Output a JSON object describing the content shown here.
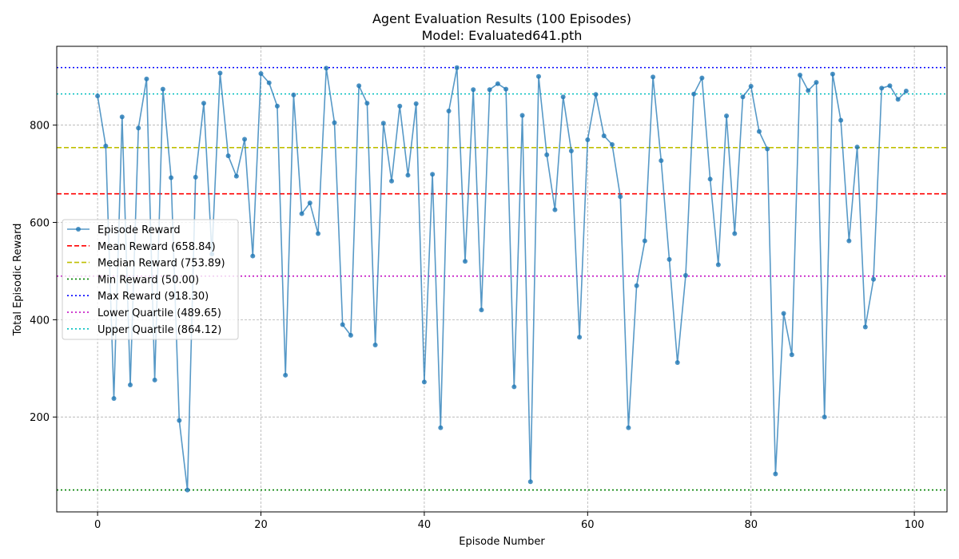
{
  "chart_data": {
    "type": "line",
    "title": "Agent Evaluation Results (100 Episodes)",
    "subtitle": "Model: Evaluated641.pth",
    "xlabel": "Episode Number",
    "ylabel": "Total Episodic Reward",
    "xlim": [
      -5,
      104
    ],
    "ylim": [
      5,
      962
    ],
    "x_ticks": [
      0,
      20,
      40,
      60,
      80,
      100
    ],
    "y_ticks": [
      200,
      400,
      600,
      800
    ],
    "grid": true,
    "legend_position": "center-left",
    "series": [
      {
        "name": "Episode Reward",
        "color": "#1f77b4",
        "x": [
          0,
          1,
          2,
          3,
          4,
          5,
          6,
          7,
          8,
          9,
          10,
          11,
          12,
          13,
          14,
          15,
          16,
          17,
          18,
          19,
          20,
          21,
          22,
          23,
          24,
          25,
          26,
          27,
          28,
          29,
          30,
          31,
          32,
          33,
          34,
          35,
          36,
          37,
          38,
          39,
          40,
          41,
          42,
          43,
          44,
          45,
          46,
          47,
          48,
          49,
          50,
          51,
          52,
          53,
          54,
          55,
          56,
          57,
          58,
          59,
          60,
          61,
          62,
          63,
          64,
          65,
          66,
          67,
          68,
          69,
          70,
          71,
          72,
          73,
          74,
          75,
          76,
          77,
          78,
          79,
          80,
          81,
          82,
          83,
          84,
          85,
          86,
          87,
          88,
          89,
          90,
          91,
          92,
          93,
          94,
          95,
          96,
          97,
          98,
          99
        ],
        "values": [
          860,
          757,
          238,
          817,
          266,
          794,
          895,
          276,
          874,
          692,
          193,
          50,
          693,
          845,
          535,
          907,
          737,
          695,
          771,
          531,
          906,
          887,
          839,
          286,
          862,
          618,
          640,
          577,
          917,
          805,
          390,
          368,
          881,
          845,
          348,
          804,
          685,
          839,
          697,
          844,
          272,
          699,
          178,
          829,
          918,
          520,
          873,
          420,
          873,
          885,
          874,
          262,
          820,
          67,
          900,
          739,
          626,
          858,
          747,
          364,
          770,
          863,
          778,
          760,
          653,
          178,
          470,
          562,
          899,
          727,
          524,
          312,
          491,
          864,
          897,
          689,
          513,
          819,
          577,
          858,
          880,
          787,
          751,
          83,
          413,
          328,
          903,
          871,
          888,
          200,
          905,
          810,
          562,
          755,
          385,
          483,
          876,
          881,
          853,
          870
        ]
      }
    ],
    "reference_lines": [
      {
        "name": "Mean Reward (658.84)",
        "value": 658.84,
        "color": "#ff0000",
        "style": "dashed"
      },
      {
        "name": "Median Reward (753.89)",
        "value": 753.89,
        "color": "#bfbf00",
        "style": "dashed"
      },
      {
        "name": "Min Reward (50.00)",
        "value": 50.0,
        "color": "#008000",
        "style": "dotted"
      },
      {
        "name": "Max Reward (918.30)",
        "value": 918.3,
        "color": "#0000ff",
        "style": "dotted"
      },
      {
        "name": "Lower Quartile (489.65)",
        "value": 489.65,
        "color": "#bf00bf",
        "style": "dotted"
      },
      {
        "name": "Upper Quartile (864.12)",
        "value": 864.12,
        "color": "#00bfbf",
        "style": "dotted"
      }
    ]
  }
}
